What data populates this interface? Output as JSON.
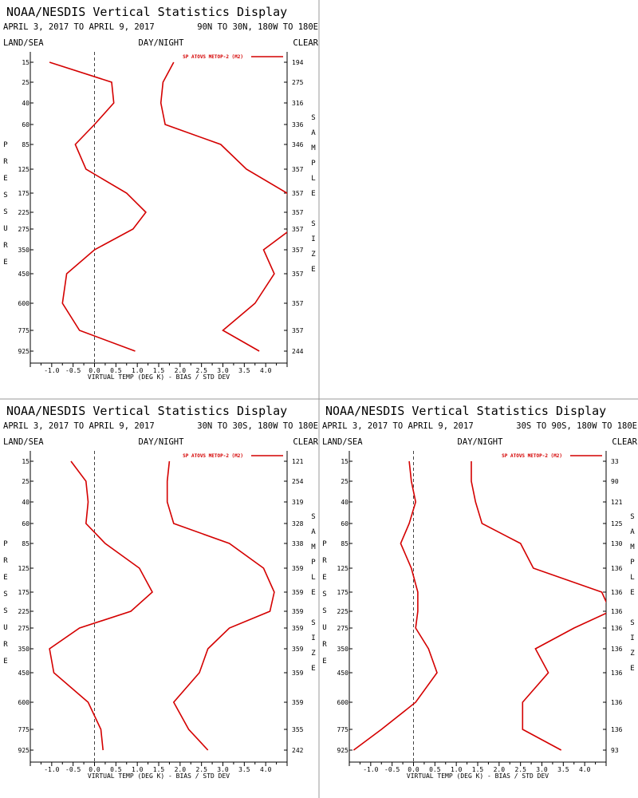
{
  "chart_data": [
    {
      "type": "line",
      "title": "NOAA/NESDIS Vertical Statistics Display",
      "date_range": "APRIL 3, 2017 TO APRIL 9, 2017",
      "region": "90N TO 30N, 180W TO 180E",
      "corner_left": "LAND/SEA",
      "corner_center": "DAY/NIGHT",
      "corner_right": "CLEAR",
      "ylabel": "PRESSURE",
      "right_label": "SAMPLE SIZE",
      "xlabel": "VIRTUAL TEMP (DEG K) - BIAS / STD DEV",
      "legend": "SP ATOVS METOP-2 (M2)",
      "xlim": [
        -1.5,
        4.5
      ],
      "x_ticks": [
        "-1.0",
        "-0.5",
        "0.0",
        "0.5",
        "1.0",
        "1.5",
        "2.0",
        "2.5",
        "3.0",
        "3.5",
        "4.0"
      ],
      "pressure_levels": [
        "15",
        "25",
        "40",
        "60",
        "85",
        "125",
        "175",
        "225",
        "275",
        "350",
        "450",
        "600",
        "775",
        "925"
      ],
      "sample_sizes": [
        "194",
        "275",
        "316",
        "336",
        "346",
        "357",
        "357",
        "357",
        "357",
        "357",
        "357",
        "357",
        "357",
        "244"
      ],
      "series": [
        {
          "values": [
            -1.05,
            0.4,
            0.45,
            0.0,
            -0.45,
            -0.2,
            0.75,
            1.2,
            0.9,
            0.0,
            -0.65,
            -0.75,
            -0.35,
            0.95
          ]
        },
        {
          "values": [
            1.85,
            1.6,
            1.55,
            1.65,
            2.95,
            3.55,
            4.5,
            4.6,
            4.6,
            3.95,
            4.2,
            3.75,
            3.0,
            3.85
          ]
        }
      ]
    },
    {
      "type": "line",
      "title": "NOAA/NESDIS Vertical Statistics Display",
      "date_range": "APRIL 3, 2017 TO APRIL 9, 2017",
      "region": "30N TO 30S, 180W TO 180E",
      "corner_left": "LAND/SEA",
      "corner_center": "DAY/NIGHT",
      "corner_right": "CLEAR",
      "ylabel": "PRESSURE",
      "right_label": "SAMPLE SIZE",
      "xlabel": "VIRTUAL TEMP (DEG K) - BIAS / STD DEV",
      "legend": "SP ATOVS METOP-2 (M2)",
      "xlim": [
        -1.5,
        4.5
      ],
      "x_ticks": [
        "-1.0",
        "-0.5",
        "0.0",
        "0.5",
        "1.0",
        "1.5",
        "2.0",
        "2.5",
        "3.0",
        "3.5",
        "4.0"
      ],
      "pressure_levels": [
        "15",
        "25",
        "40",
        "60",
        "85",
        "125",
        "175",
        "225",
        "275",
        "350",
        "450",
        "600",
        "775",
        "925"
      ],
      "sample_sizes": [
        "121",
        "254",
        "319",
        "328",
        "338",
        "359",
        "359",
        "359",
        "359",
        "359",
        "359",
        "359",
        "355",
        "242"
      ],
      "series": [
        {
          "values": [
            -0.55,
            -0.2,
            -0.15,
            -0.2,
            0.25,
            1.05,
            1.35,
            0.85,
            -0.35,
            -1.05,
            -0.95,
            -0.15,
            0.15,
            0.2
          ]
        },
        {
          "values": [
            1.75,
            1.7,
            1.7,
            1.85,
            3.15,
            3.95,
            4.2,
            4.1,
            3.15,
            2.65,
            2.45,
            1.85,
            2.2,
            2.65
          ]
        }
      ]
    },
    {
      "type": "line",
      "title": "NOAA/NESDIS Vertical Statistics Display",
      "date_range": "APRIL 3, 2017 TO APRIL 9, 2017",
      "region": "30S TO 90S, 180W TO 180E",
      "corner_left": "LAND/SEA",
      "corner_center": "DAY/NIGHT",
      "corner_right": "CLEAR",
      "ylabel": "PRESSURE",
      "right_label": "SAMPLE SIZE",
      "xlabel": "VIRTUAL TEMP (DEG K) - BIAS / STD DEV",
      "legend": "SP ATOVS METOP-2 (M2)",
      "xlim": [
        -1.5,
        4.5
      ],
      "x_ticks": [
        "-1.0",
        "-0.5",
        "0.0",
        "0.5",
        "1.0",
        "1.5",
        "2.0",
        "2.5",
        "3.0",
        "3.5",
        "4.0"
      ],
      "pressure_levels": [
        "15",
        "25",
        "40",
        "60",
        "85",
        "125",
        "175",
        "225",
        "275",
        "350",
        "450",
        "600",
        "775",
        "925"
      ],
      "sample_sizes": [
        "33",
        "90",
        "121",
        "125",
        "130",
        "136",
        "136",
        "136",
        "136",
        "136",
        "136",
        "136",
        "136",
        "93"
      ],
      "series": [
        {
          "values": [
            -0.1,
            -0.05,
            0.05,
            -0.1,
            -0.3,
            -0.05,
            0.1,
            0.1,
            0.05,
            0.35,
            0.55,
            0.05,
            -0.75,
            -1.4
          ]
        },
        {
          "values": [
            1.35,
            1.35,
            1.45,
            1.6,
            2.5,
            2.8,
            4.4,
            4.6,
            3.75,
            2.85,
            3.15,
            2.55,
            2.55,
            3.45
          ]
        }
      ]
    }
  ],
  "colors": {
    "series": "#d40000",
    "background": "#ffffff",
    "axis": "#000000"
  }
}
